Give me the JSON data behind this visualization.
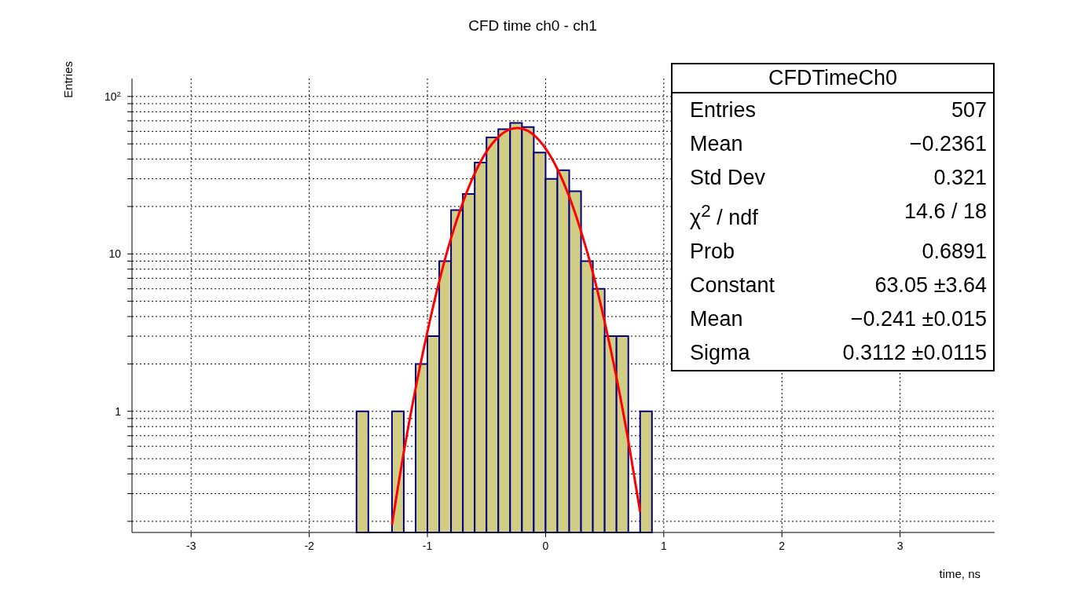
{
  "chart_data": {
    "type": "histogram",
    "title": "CFD time ch0 - ch1",
    "xlabel": "time, ns",
    "ylabel": "Entries",
    "series": [
      {
        "color": "#d2cd85",
        "bins": [
          -1.6,
          -1.5,
          -1.4,
          -1.3,
          -1.2,
          -1.1,
          -1.0,
          -0.9,
          -0.8,
          -0.7,
          -0.6,
          -0.5,
          -0.4,
          -0.3,
          -0.2,
          -0.1,
          0.0,
          0.1,
          0.2,
          0.3,
          0.4,
          0.5,
          0.6,
          0.7,
          0.8,
          0.9
        ],
        "values": [
          1,
          null,
          null,
          1,
          null,
          2,
          3,
          9,
          19,
          24,
          38,
          55,
          62,
          68,
          64,
          44,
          30,
          34,
          25,
          9,
          6,
          3,
          3,
          null,
          1
        ]
      },
      {
        "type": "line",
        "color": "#ff0000",
        "x": [
          -1.3,
          -1.2,
          -1.1,
          -1.0,
          -0.9,
          -0.8,
          -0.7,
          -0.6,
          -0.5,
          -0.4,
          -0.3,
          -0.241,
          -0.2,
          -0.1,
          0.0,
          0.1,
          0.2,
          0.3,
          0.4,
          0.5,
          0.6,
          0.7,
          0.8
        ],
        "values": [
          0.19,
          0.55,
          1.4,
          3.2,
          6.7,
          12.6,
          21.2,
          32.4,
          44.6,
          55.3,
          61.9,
          63.05,
          62.5,
          56.9,
          46.7,
          34.6,
          23.1,
          13.9,
          7.6,
          3.7,
          1.64,
          0.65,
          0.23
        ]
      }
    ],
    "xlim": [
      -3.5,
      3.8
    ],
    "xticks": [
      -3,
      -2,
      -1,
      0,
      1,
      2,
      3
    ],
    "ylim": [
      0.17,
      130
    ],
    "log": true,
    "yticks": [
      {
        "value": 0.2,
        "label": null
      },
      {
        "value": 0.3,
        "label": null
      },
      {
        "value": 0.4,
        "label": null
      },
      {
        "value": 0.5,
        "label": null
      },
      {
        "value": 0.6,
        "label": null
      },
      {
        "value": 0.7,
        "label": null
      },
      {
        "value": 0.8,
        "label": null
      },
      {
        "value": 0.9,
        "label": null
      },
      1,
      {
        "value": 2,
        "label": null
      },
      {
        "value": 3,
        "label": null
      },
      {
        "value": 4,
        "label": null
      },
      {
        "value": 5,
        "label": null
      },
      {
        "value": 6,
        "label": null
      },
      {
        "value": 7,
        "label": null
      },
      {
        "value": 8,
        "label": null
      },
      {
        "value": 9,
        "label": null
      },
      10,
      {
        "value": 20,
        "label": null
      },
      {
        "value": 30,
        "label": null
      },
      {
        "value": 40,
        "label": null
      },
      {
        "value": 50,
        "label": null
      },
      {
        "value": 60,
        "label": null
      },
      {
        "value": 70,
        "label": null
      },
      {
        "value": 80,
        "label": null
      },
      {
        "value": 90,
        "label": null
      },
      {
        "value": 100,
        "label": "10$^{2}$"
      }
    ],
    "grid": true,
    "marker": "none",
    "line_style": "solid",
    "annotations": [
      "CFDTimeCh0",
      "Entries",
      "507",
      "Mean",
      "−0.2361",
      "Std Dev",
      "0.321",
      "χ$^{2}$ / ndf",
      "14.6 / 18",
      "Prob",
      "0.6891",
      "Constant",
      "63.05 ±3.64",
      "Mean",
      "−0.241 ±0.015",
      "Sigma",
      "0.3112 ±0.0115"
    ]
  }
}
